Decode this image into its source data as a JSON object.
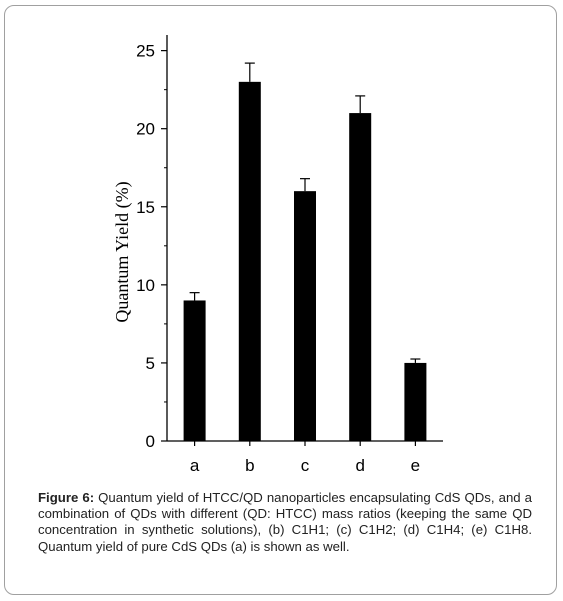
{
  "chart_data": {
    "type": "bar",
    "categories": [
      "a",
      "b",
      "c",
      "d",
      "e"
    ],
    "values": [
      9.0,
      23.0,
      16.0,
      21.0,
      5.0
    ],
    "errors": [
      0.5,
      1.2,
      0.8,
      1.1,
      0.25
    ],
    "title": "",
    "xlabel": "",
    "ylabel": "Quantum Yield (%)",
    "ylim": [
      0,
      26
    ],
    "yticks": [
      0,
      5,
      10,
      15,
      20,
      25
    ],
    "grid": false,
    "bar_color": "#000000"
  },
  "caption": {
    "label": "Figure 6:",
    "text": " Quantum yield of HTCC/QD nanoparticles encapsulating CdS QDs, and a combination of QDs with different (QD: HTCC) mass ratios (keeping the same QD concentration in synthetic solutions), (b) C1H1; (c) C1H2; (d) C1H4; (e) C1H8. Quantum yield of pure CdS QDs (a) is shown as well."
  }
}
